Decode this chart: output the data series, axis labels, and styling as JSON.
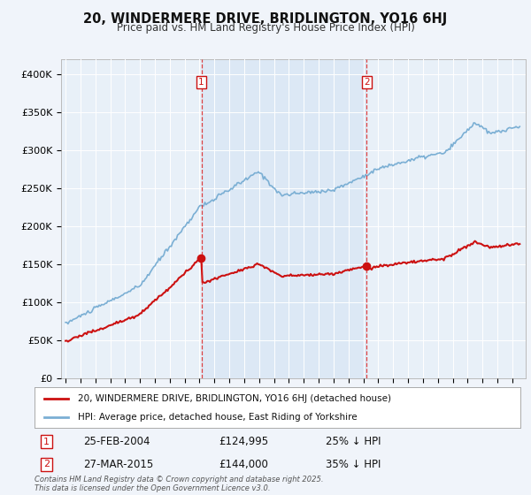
{
  "title": "20, WINDERMERE DRIVE, BRIDLINGTON, YO16 6HJ",
  "subtitle": "Price paid vs. HM Land Registry's House Price Index (HPI)",
  "ylim": [
    0,
    420000
  ],
  "yticks": [
    0,
    50000,
    100000,
    150000,
    200000,
    250000,
    300000,
    350000,
    400000
  ],
  "ytick_labels": [
    "£0",
    "£50K",
    "£100K",
    "£150K",
    "£200K",
    "£250K",
    "£300K",
    "£350K",
    "£400K"
  ],
  "hpi_color": "#7bafd4",
  "hpi_fill_color": "#ddeeff",
  "price_color": "#cc1111",
  "vline_color": "#dd2222",
  "purchase1_date": 2004.12,
  "purchase1_price": 124995,
  "purchase2_date": 2015.23,
  "purchase2_price": 144000,
  "bg_color": "#f0f4fa",
  "plot_bg": "#e8f0f8",
  "shaded_bg": "#dce8f5",
  "grid_color": "#ffffff",
  "legend_label1": "20, WINDERMERE DRIVE, BRIDLINGTON, YO16 6HJ (detached house)",
  "legend_label2": "HPI: Average price, detached house, East Riding of Yorkshire",
  "annotation1_date": "25-FEB-2004",
  "annotation1_price": "£124,995",
  "annotation1_hpi": "25% ↓ HPI",
  "annotation2_date": "27-MAR-2015",
  "annotation2_price": "£144,000",
  "annotation2_hpi": "35% ↓ HPI",
  "footnote": "Contains HM Land Registry data © Crown copyright and database right 2025.\nThis data is licensed under the Open Government Licence v3.0."
}
